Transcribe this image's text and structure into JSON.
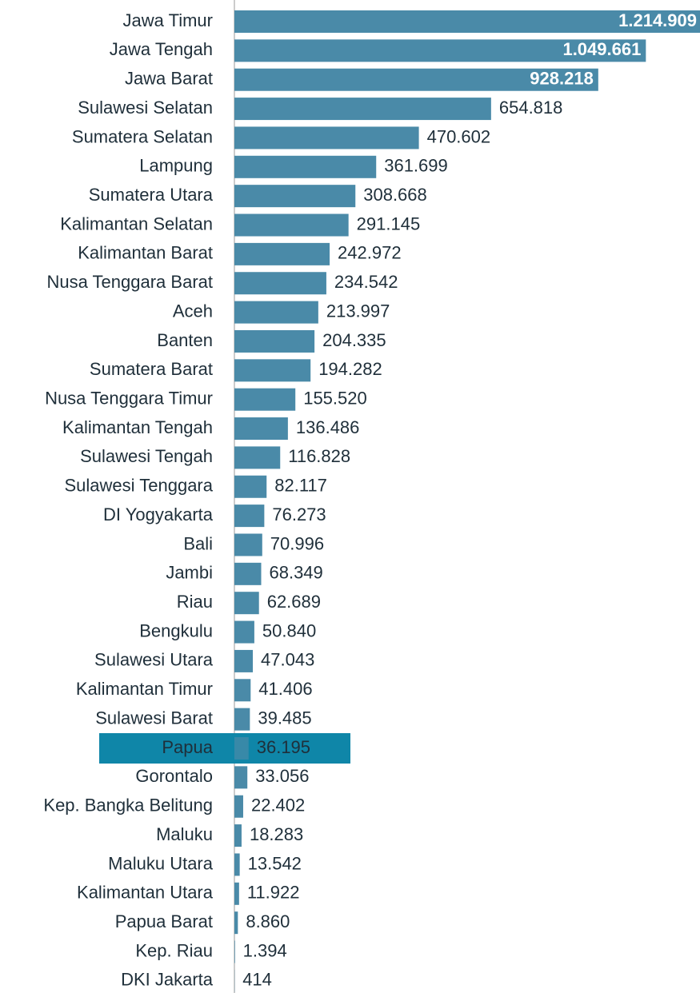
{
  "chart_data": {
    "type": "barh",
    "categories": [
      "Jawa Timur",
      "Jawa Tengah",
      "Jawa Barat",
      "Sulawesi Selatan",
      "Sumatera Selatan",
      "Lampung",
      "Sumatera Utara",
      "Kalimantan Selatan",
      "Kalimantan Barat",
      "Nusa Tenggara Barat",
      "Aceh",
      "Banten",
      "Sumatera Barat",
      "Nusa Tenggara Timur",
      "Kalimantan Tengah",
      "Sulawesi Tengah",
      "Sulawesi Tenggara",
      "DI Yogyakarta",
      "Bali",
      "Jambi",
      "Riau",
      "Bengkulu",
      "Sulawesi Utara",
      "Kalimantan Timur",
      "Sulawesi Barat",
      "Papua",
      "Gorontalo",
      "Kep. Bangka Belitung",
      "Maluku",
      "Maluku Utara",
      "Kalimantan Utara",
      "Papua Barat",
      "Kep. Riau",
      "DKI Jakarta"
    ],
    "values": [
      1214909,
      1049661,
      928218,
      654818,
      470602,
      361699,
      308668,
      291145,
      242972,
      234542,
      213997,
      204335,
      194282,
      155520,
      136486,
      116828,
      82117,
      76273,
      70996,
      68349,
      62689,
      50840,
      47043,
      41406,
      39485,
      36195,
      33056,
      22402,
      18283,
      13542,
      11922,
      8860,
      1394,
      414
    ],
    "value_labels": [
      "1.214.909",
      "1.049.661",
      "928.218",
      "654.818",
      "470.602",
      "361.699",
      "308.668",
      "291.145",
      "242.972",
      "234.542",
      "213.997",
      "204.335",
      "194.282",
      "155.520",
      "136.486",
      "116.828",
      "82.117",
      "76.273",
      "70.996",
      "68.349",
      "62.689",
      "50.840",
      "47.043",
      "41.406",
      "39.485",
      "36.195",
      "33.056",
      "22.402",
      "18.283",
      "13.542",
      "11.922",
      "8.860",
      "1.394",
      "414"
    ],
    "color": "#4a8aa8",
    "highlight": "Papua",
    "highlight_color": "#0f86a8"
  }
}
